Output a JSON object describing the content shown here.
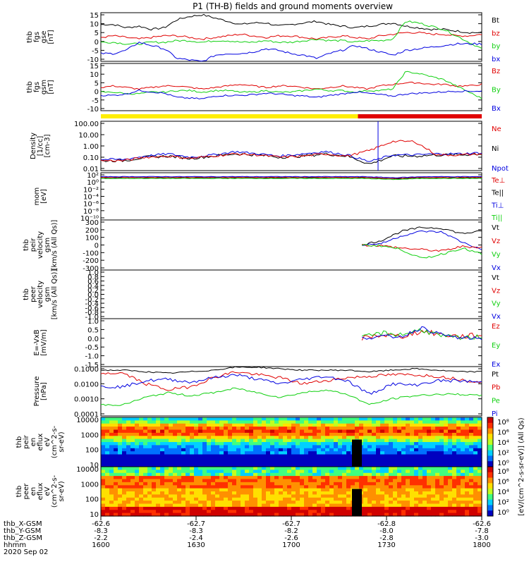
{
  "title": "P1 (TH-B) fields and ground moments overview",
  "colors": {
    "black": "#000000",
    "red": "#e00000",
    "green": "#10d010",
    "blue": "#0000e0",
    "yellow": "#ffee00"
  },
  "panels": [
    {
      "id": "fgs",
      "ylabel": [
        "thb",
        "fgs",
        "gse",
        "[nT]"
      ],
      "yticks": [
        "15",
        "10",
        "5",
        "0",
        "-5",
        "-10"
      ],
      "legend": [
        {
          "text": "Bt",
          "color": "black"
        },
        {
          "text": "bz",
          "color": "red"
        },
        {
          "text": "by",
          "color": "green"
        },
        {
          "text": "bx",
          "color": "blue"
        }
      ]
    },
    {
      "id": "fgs_gsm",
      "ylabel": [
        "thb",
        "fgs",
        "gsm",
        "[nT]"
      ],
      "yticks": [
        "15",
        "10",
        "5",
        "0",
        "-5",
        "-10"
      ],
      "legend": [
        {
          "text": "Bz",
          "color": "red"
        },
        {
          "text": "By",
          "color": "green"
        },
        {
          "text": "Bx",
          "color": "blue"
        }
      ]
    },
    {
      "id": "density",
      "ylabel": [
        "Density",
        "[1/cc]",
        "[cm-3]"
      ],
      "yticks": [
        "100.00",
        "10.00",
        "1.00",
        "0.10",
        "0.01"
      ],
      "legend": [
        {
          "text": "Ne",
          "color": "red"
        },
        {
          "text": "Ni",
          "color": "black"
        },
        {
          "text": "Npot",
          "color": "blue"
        }
      ]
    },
    {
      "id": "temp",
      "ylabel": [
        "mom",
        "[eV]"
      ],
      "yticks": [
        "10²",
        "10⁰",
        "10⁻²",
        "10⁻⁴",
        "10⁻⁶",
        "10⁻⁸",
        "10⁻¹⁰"
      ],
      "legend": [
        {
          "text": "Te⊥",
          "color": "red"
        },
        {
          "text": "Te||",
          "color": "black"
        },
        {
          "text": "Ti⊥",
          "color": "blue"
        },
        {
          "text": "Ti||",
          "color": "green"
        }
      ]
    },
    {
      "id": "peir_vel",
      "ylabel": [
        "thb",
        "peir",
        "velocity",
        "gsm",
        "[km/s (All Qs)]"
      ],
      "yticks": [
        "300",
        "200",
        "100",
        "0",
        "-100",
        "-200",
        "-300"
      ],
      "legend": [
        {
          "text": "Vt",
          "color": "black"
        },
        {
          "text": "Vz",
          "color": "red"
        },
        {
          "text": "Vy",
          "color": "green"
        },
        {
          "text": "Vx",
          "color": "blue"
        }
      ]
    },
    {
      "id": "peer_vel",
      "ylabel": [
        "thb",
        "peer",
        "velocity",
        "gsm",
        "[km/s (All Qs)]"
      ],
      "yticks": [
        "1.0",
        "0.8",
        "0.6",
        "0.4",
        "0.2",
        "0.0",
        "-0.2",
        "-0.4",
        "-0.6",
        "-0.8",
        "-1.0"
      ],
      "legend": [
        {
          "text": "Vt",
          "color": "black"
        },
        {
          "text": "Vz",
          "color": "red"
        },
        {
          "text": "Vy",
          "color": "green"
        },
        {
          "text": "Vx",
          "color": "blue"
        }
      ]
    },
    {
      "id": "efield",
      "ylabel": [
        "E=-VxB",
        "[mV/m]"
      ],
      "yticks": [
        "1.0",
        "0.5",
        "0.0",
        "-0.5",
        "-1.0",
        "-1.5"
      ],
      "legend": [
        {
          "text": "Ez",
          "color": "red"
        },
        {
          "text": "Ey",
          "color": "green"
        },
        {
          "text": "Ex",
          "color": "blue"
        }
      ]
    },
    {
      "id": "pressure",
      "ylabel": [
        "Pressure",
        "[nPa]"
      ],
      "yticks": [
        "0.1000",
        "0.0100",
        "0.0010",
        "0.0001"
      ],
      "legend": [
        {
          "text": "Pt",
          "color": "black"
        },
        {
          "text": "Pb",
          "color": "red"
        },
        {
          "text": "Pe",
          "color": "green"
        },
        {
          "text": "Pi",
          "color": "blue"
        }
      ]
    },
    {
      "id": "peir_en",
      "ylabel": [
        "thb",
        "peir",
        "en",
        "eflux",
        "eV",
        "(cm^2-s-",
        "sr-eV)"
      ],
      "yticks": [
        "10000",
        "1000",
        "100",
        "10"
      ],
      "cbticks": [
        "10⁸",
        "10⁶",
        "10⁴",
        "10²",
        "10⁰"
      ]
    },
    {
      "id": "peer_en",
      "ylabel": [
        "thb",
        "peer",
        "en",
        "eflux",
        "eV",
        "(cm^2-s-",
        "sr-eV)"
      ],
      "yticks": [
        "10000",
        "1000",
        "100",
        "10"
      ],
      "cbticks": [
        "10⁸",
        "10⁶",
        "10⁴",
        "10²",
        "10⁰"
      ]
    }
  ],
  "colorbar_label": "[eV/(cm^2-s-sr-eV)] (All Qs)",
  "axis": {
    "rows": [
      {
        "label": "thb_X-GSM",
        "values": [
          "-62.6",
          "-62.7",
          "-62.7",
          "-62.8",
          "-62.6"
        ]
      },
      {
        "label": "thb_Y-GSM",
        "values": [
          "-8.3",
          "-8.3",
          "-8.2",
          "-8.0",
          "-7.8"
        ]
      },
      {
        "label": "thb_Z-GSM",
        "values": [
          "-2.2",
          "-2.4",
          "-2.6",
          "-2.8",
          "-3.0"
        ]
      },
      {
        "label": "hhmm",
        "values": [
          "1600",
          "1630",
          "1700",
          "1730",
          "1800"
        ]
      }
    ],
    "date": "2020 Sep 02"
  },
  "chart_data": {
    "type": "line",
    "x_time": [
      "1600",
      "1630",
      "1700",
      "1730",
      "1800"
    ],
    "bars": [
      {
        "color": "yellow",
        "from": "1600",
        "to": "1722"
      },
      {
        "color": "red",
        "from": "1722",
        "to": "1800"
      }
    ],
    "series": {
      "Bt": [
        9,
        9,
        7,
        8,
        6,
        7,
        12,
        14,
        15,
        13,
        11,
        9,
        10,
        10,
        8,
        9,
        10,
        11,
        9,
        8,
        7,
        8,
        9,
        10,
        8,
        7,
        6,
        6,
        5,
        4,
        4
      ],
      "bz": [
        1,
        2,
        1,
        0,
        1,
        2,
        2,
        1,
        0,
        1,
        2,
        3,
        2,
        1,
        2,
        2,
        1,
        0,
        1,
        2,
        1,
        0,
        2,
        3,
        4,
        4,
        3,
        3,
        2,
        2,
        3
      ],
      "by": [
        -2,
        -2,
        -3,
        -3,
        -2,
        -2,
        -1,
        -1,
        -2,
        -1,
        -1,
        -2,
        -2,
        -1,
        -2,
        -2,
        -1,
        0,
        -1,
        -1,
        -2,
        -1,
        -1,
        0,
        11,
        10,
        8,
        6,
        2,
        -2,
        -6
      ],
      "bx": [
        -9,
        -9,
        -7,
        -2,
        -4,
        -6,
        -12,
        -13,
        -14,
        -10,
        -9,
        -9,
        -8,
        -6,
        -7,
        -9,
        -10,
        -12,
        -9,
        -7,
        -4,
        -6,
        -8,
        -10,
        -7,
        -6,
        -5,
        -4,
        -3,
        -3,
        -3
      ]
    }
  }
}
